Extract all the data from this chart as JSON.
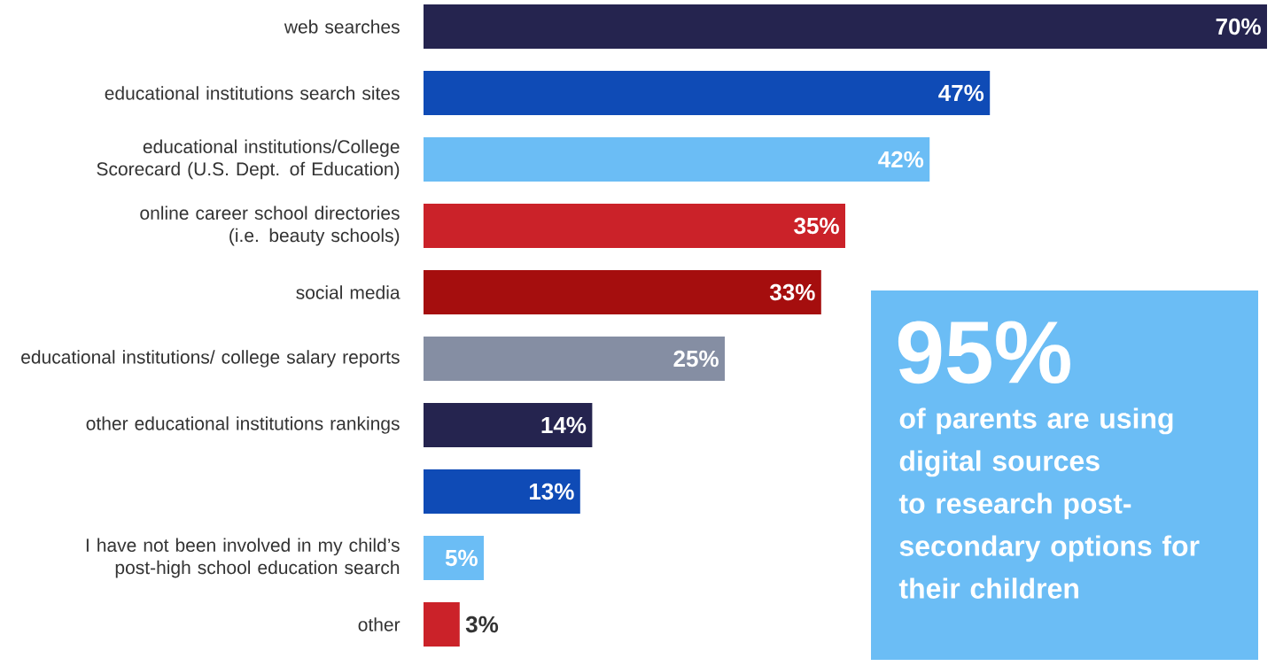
{
  "chart_data": [
    {
      "type": "bar",
      "orientation": "horizontal",
      "categories": [
        "web searches",
        "educational institutions search sites",
        "educational institutions/College Scorecard (U.S. Dept. of Education)",
        "online career school directories (i.e. beauty schools)",
        "social media",
        "educational institutions/ college salary reports",
        "other educational institutions rankings",
        null,
        "I have not been involved in my child’s post-high school education search",
        "other"
      ],
      "values": [
        70,
        47,
        42,
        35,
        33,
        25,
        14,
        13,
        5,
        3
      ],
      "colors": [
        "#25244f",
        "#0f4bb6",
        "#6bbdf5",
        "#cb2229",
        "#a50e0e",
        "#858ea3",
        "#25244f",
        "#0f4bb6",
        "#6bbdf5",
        "#cb2229"
      ],
      "value_labels": [
        "70%",
        "47%",
        "42%",
        "35%",
        "33%",
        "25%",
        "14%",
        "13%",
        "5%",
        "3%"
      ]
    },
    {
      "type": "other",
      "title": "95%",
      "subtitle": "of parents are using digital sources to research post-secondary options for their children"
    }
  ]
}
